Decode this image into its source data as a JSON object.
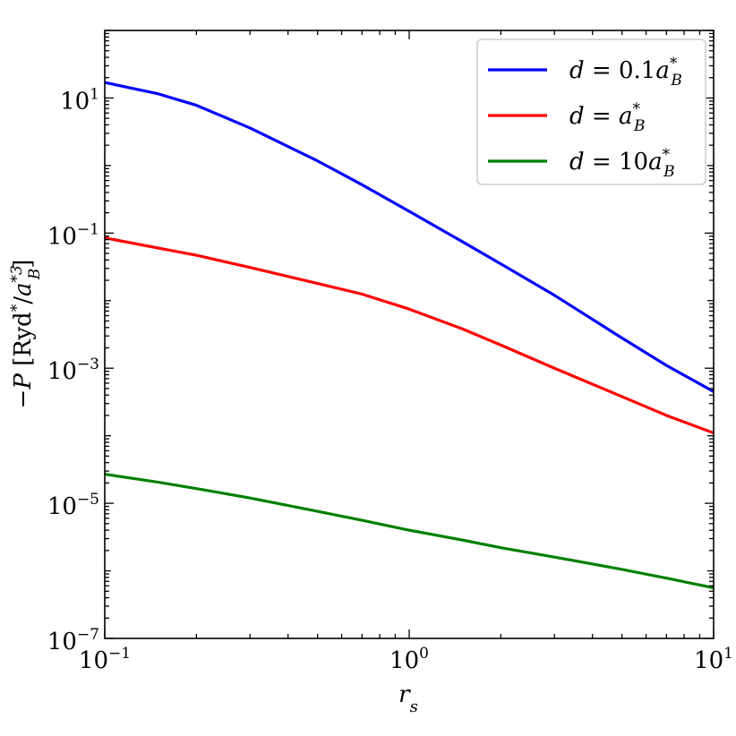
{
  "chart_data": {
    "type": "line",
    "xlabel": "r_s",
    "ylabel": "−P [Ryd*/a_B*³]",
    "x_scale": "log",
    "y_scale": "log",
    "xlim": [
      0.1,
      10
    ],
    "ylim": [
      1e-07,
      100
    ],
    "x_ticks": [
      {
        "value": 0.1,
        "base": "10",
        "exp": "−1"
      },
      {
        "value": 1,
        "base": "10",
        "exp": "0"
      },
      {
        "value": 10,
        "base": "10",
        "exp": "1"
      }
    ],
    "y_ticks": [
      {
        "value": 1e-07,
        "base": "10",
        "exp": "−7"
      },
      {
        "value": 1e-05,
        "base": "10",
        "exp": "−5"
      },
      {
        "value": 0.001,
        "base": "10",
        "exp": "−3"
      },
      {
        "value": 0.1,
        "base": "10",
        "exp": "−1"
      },
      {
        "value": 10,
        "base": "10",
        "exp": "1"
      }
    ],
    "grid": false,
    "legend_position": "top-right",
    "series": [
      {
        "name": "d = 0.1a_B*",
        "color": "#0000ff",
        "x": [
          0.1,
          0.15,
          0.2,
          0.3,
          0.5,
          0.7,
          1.0,
          1.5,
          2.0,
          3.0,
          5.0,
          7.0,
          10.0
        ],
        "y": [
          17,
          11.5,
          7.8,
          3.6,
          1.17,
          0.52,
          0.21,
          0.074,
          0.035,
          0.012,
          0.0028,
          0.0011,
          0.00045
        ]
      },
      {
        "name": "d = a_B*",
        "color": "#ff0000",
        "x": [
          0.1,
          0.15,
          0.2,
          0.3,
          0.5,
          0.7,
          1.0,
          1.5,
          2.0,
          3.0,
          5.0,
          7.0,
          10.0
        ],
        "y": [
          0.085,
          0.06,
          0.047,
          0.031,
          0.018,
          0.0125,
          0.0075,
          0.0038,
          0.0022,
          0.001,
          0.00038,
          0.0002,
          0.00011
        ]
      },
      {
        "name": "d = 10a_B*",
        "color": "#008000",
        "x": [
          0.1,
          0.15,
          0.2,
          0.3,
          0.5,
          0.7,
          1.0,
          1.5,
          2.0,
          3.0,
          5.0,
          7.0,
          10.0
        ],
        "y": [
          2.7e-05,
          2.05e-05,
          1.65e-05,
          1.2e-05,
          7.6e-06,
          5.6e-06,
          4e-06,
          2.85e-06,
          2.2e-06,
          1.6e-06,
          1.05e-06,
          7.8e-07,
          5.6e-07
        ]
      }
    ]
  }
}
